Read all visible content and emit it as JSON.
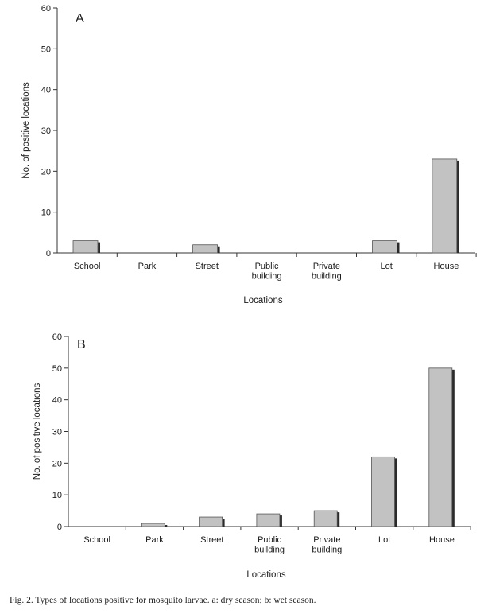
{
  "caption": "Fig. 2. Types of locations positive for mosquito larvae. a: dry season; b: wet season.",
  "colors": {
    "bar_fill": "#c2c2c2",
    "bar_shadow": "#2a2a2a",
    "axis": "#333333"
  },
  "chart_data": [
    {
      "type": "bar",
      "panel_label": "A",
      "categories": [
        "School",
        "Park",
        "Street",
        "Public building",
        "Private building",
        "Lot",
        "House"
      ],
      "category_lines": [
        [
          "School"
        ],
        [
          "Park"
        ],
        [
          "Street"
        ],
        [
          "Public",
          "building"
        ],
        [
          "Private",
          "building"
        ],
        [
          "Lot"
        ],
        [
          "House"
        ]
      ],
      "values": [
        3,
        0,
        2,
        0,
        0,
        3,
        23
      ],
      "xlabel": "Locations",
      "ylabel": "No. of positive locations",
      "ylim": [
        0,
        60
      ],
      "yticks": [
        0,
        10,
        20,
        30,
        40,
        50,
        60
      ],
      "grid": false,
      "legend": "none"
    },
    {
      "type": "bar",
      "panel_label": "B",
      "categories": [
        "School",
        "Park",
        "Street",
        "Public building",
        "Private building",
        "Lot",
        "House"
      ],
      "category_lines": [
        [
          "School"
        ],
        [
          "Park"
        ],
        [
          "Street"
        ],
        [
          "Public",
          "building"
        ],
        [
          "Private",
          "building"
        ],
        [
          "Lot"
        ],
        [
          "House"
        ]
      ],
      "values": [
        0,
        1,
        3,
        4,
        5,
        22,
        50
      ],
      "xlabel": "Locations",
      "ylabel": "No. of positive locations",
      "ylim": [
        0,
        60
      ],
      "yticks": [
        0,
        10,
        20,
        30,
        40,
        50,
        60
      ],
      "grid": false,
      "legend": "none"
    }
  ]
}
